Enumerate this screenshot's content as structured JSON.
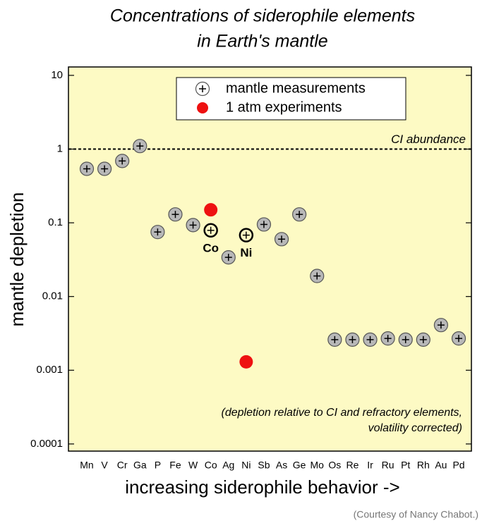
{
  "chart_data": {
    "type": "scatter",
    "title": [
      "Concentrations of siderophile elements",
      "in Earth's mantle"
    ],
    "ylabel": "mantle depletion",
    "xlabel": "increasing siderophile behavior ->",
    "categories": [
      "Mn",
      "V",
      "Cr",
      "Ga",
      "P",
      "Fe",
      "W",
      "Co",
      "Ag",
      "Ni",
      "Sb",
      "As",
      "Ge",
      "Mo",
      "Os",
      "Re",
      "Ir",
      "Ru",
      "Pt",
      "Rh",
      "Au",
      "Pd"
    ],
    "series": [
      {
        "name": "mantle measurements",
        "color": "#b8b8b8",
        "values": [
          0.54,
          0.54,
          0.69,
          1.1,
          0.075,
          0.13,
          0.093,
          0.079,
          0.034,
          0.068,
          0.095,
          0.06,
          0.13,
          0.019,
          0.0026,
          0.0026,
          0.0026,
          0.0027,
          0.0026,
          0.0026,
          0.0041,
          0.0027
        ]
      },
      {
        "name": "1 atm experiments",
        "color": "#ee1111",
        "values": [
          null,
          null,
          null,
          null,
          null,
          null,
          null,
          0.15,
          null,
          0.0013,
          null,
          null,
          null,
          null,
          null,
          null,
          null,
          null,
          null,
          null,
          null,
          null
        ]
      }
    ],
    "annotations": [
      "Co",
      "Ni"
    ],
    "reference_line": {
      "value": 1,
      "label": "CI abundance"
    },
    "note": [
      "(depletion relative to CI and refractory elements,",
      "volatility corrected)"
    ],
    "credit": "(Courtesy of Nancy Chabot.)",
    "log_y": true,
    "ylim": [
      8e-05,
      13
    ],
    "yticks": [
      10,
      1,
      0.1,
      0.01,
      0.001,
      0.0001
    ],
    "legend": "top"
  }
}
